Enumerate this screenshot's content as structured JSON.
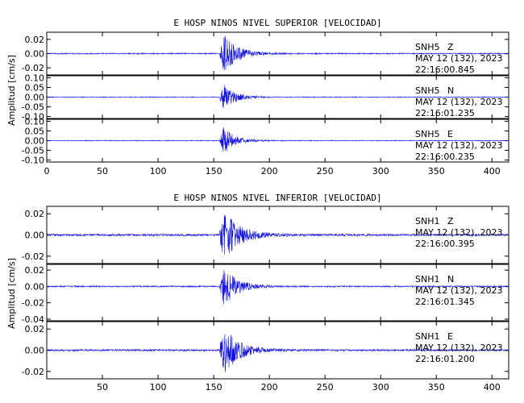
{
  "chart_data": [
    {
      "type": "line",
      "title": "E HOSP NINOS NIVEL SUPERIOR [VELOCIDAD]",
      "ylabel": "Amplitud [cm/s]",
      "xlim": [
        0,
        415
      ],
      "x_ticks": [
        0,
        50,
        100,
        150,
        200,
        250,
        300,
        350,
        400
      ],
      "x_tick_labels": [
        "0",
        "50",
        "100",
        "150",
        "200",
        "250",
        "300",
        "350",
        "400"
      ],
      "show_x_tick_labels": true,
      "x_tick_label_overlap": "350",
      "panels": [
        {
          "station": "SNH5",
          "component": "Z",
          "date": "MAY 12 (132), 2023",
          "time": "22:16:00.845",
          "y_ticks": [
            0.02,
            0.0,
            -0.02
          ],
          "y_tick_labels": [
            "0.02",
            "0.00",
            "-0.02"
          ],
          "ylim": [
            -0.03,
            0.03
          ],
          "noise": 0.0008,
          "onset": 155,
          "peak": 0.027,
          "decay": 12
        },
        {
          "station": "SNH5",
          "component": "N",
          "date": "MAY 12 (132), 2023",
          "time": "22:16:01.235",
          "y_ticks": [
            0.1,
            0.05,
            0.0,
            -0.05,
            -0.1
          ],
          "y_tick_labels": [
            "0.10",
            "0.05",
            "0.00",
            "-0.05",
            "-0.10"
          ],
          "ylim": [
            -0.11,
            0.11
          ],
          "noise": 0.002,
          "onset": 155,
          "peak": 0.07,
          "decay": 10
        },
        {
          "station": "SNH5",
          "component": "E",
          "date": "MAY 12 (132), 2023",
          "time": "22:16:00.235",
          "y_ticks": [
            0.1,
            0.05,
            0.0,
            -0.05,
            -0.1
          ],
          "y_tick_labels": [
            "0.10",
            "0.05",
            "0.00",
            "-0.05",
            "-0.10"
          ],
          "ylim": [
            -0.11,
            0.11
          ],
          "noise": 0.002,
          "onset": 155,
          "peak": 0.07,
          "decay": 10
        }
      ]
    },
    {
      "type": "line",
      "title": "E HOSP NINOS NIVEL INFERIOR [VELOCIDAD]",
      "ylabel": "Amplitud [cm/s]",
      "xlim": [
        0,
        415
      ],
      "x_ticks": [
        50,
        100,
        150,
        200,
        250,
        300,
        350,
        400
      ],
      "x_tick_labels": [
        "50",
        "100",
        "150",
        "200",
        "250",
        "300",
        "350",
        "400"
      ],
      "show_x_tick_labels": true,
      "x_tick_label_overlap": "",
      "panels": [
        {
          "station": "SNH1",
          "component": "Z",
          "date": "MAY 12 (132), 2023",
          "time": "22:16:00.395",
          "y_ticks": [
            0.02,
            0.0,
            -0.02
          ],
          "y_tick_labels": [
            "0.02",
            "0.00",
            "-0.02"
          ],
          "ylim": [
            -0.027,
            0.027
          ],
          "noise": 0.0009,
          "onset": 155,
          "peak": 0.024,
          "decay": 14
        },
        {
          "station": "SNH1",
          "component": "N",
          "date": "MAY 12 (132), 2023",
          "time": "22:16:01.345",
          "y_ticks": [
            0.02,
            0.0,
            -0.02,
            -0.04
          ],
          "y_tick_labels": [
            "0.02",
            "0.00",
            "-0.02",
            "-0.04"
          ],
          "ylim": [
            -0.042,
            0.027
          ],
          "noise": 0.0008,
          "onset": 155,
          "peak": 0.025,
          "decay": 12
        },
        {
          "station": "SNH1",
          "component": "E",
          "date": "MAY 12 (132), 2023",
          "time": "22:16:01.200",
          "y_ticks": [
            0.02,
            0.0,
            -0.02
          ],
          "y_tick_labels": [
            "0.02",
            "0.00",
            "-0.02"
          ],
          "ylim": [
            -0.027,
            0.027
          ],
          "noise": 0.0008,
          "onset": 155,
          "peak": 0.024,
          "decay": 13
        }
      ]
    }
  ],
  "colors": {
    "trace": "#1010e0",
    "axes": "#000000"
  }
}
